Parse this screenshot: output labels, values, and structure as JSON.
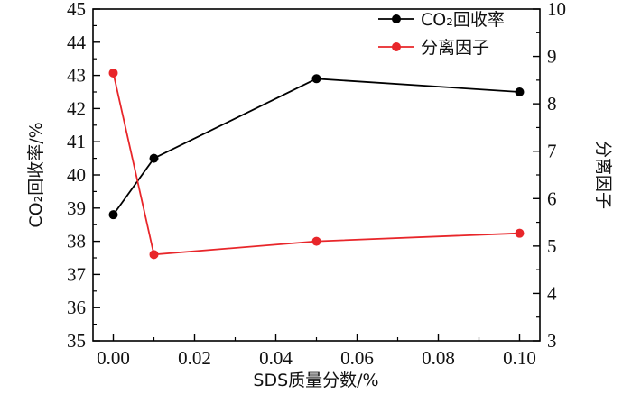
{
  "chart_data": {
    "type": "line",
    "title": "",
    "xlabel": "SDS质量分数/%",
    "ylabel_left": "CO₂回收率/%",
    "ylabel_right": "分离因子",
    "xlim": [
      -0.005,
      0.105
    ],
    "ylim_left": [
      35,
      45
    ],
    "ylim_right": [
      3,
      10
    ],
    "x_ticks": [
      "0.00",
      "0.02",
      "0.04",
      "0.06",
      "0.08",
      "0.10"
    ],
    "y_left_ticks": [
      "35",
      "36",
      "37",
      "38",
      "39",
      "40",
      "41",
      "42",
      "43",
      "44",
      "45"
    ],
    "y_right_ticks": [
      "3",
      "4",
      "5",
      "6",
      "7",
      "8",
      "9",
      "10"
    ],
    "grid": false,
    "legend_position": "top-right",
    "series": [
      {
        "name": "CO₂回收率",
        "axis": "left",
        "color": "#000000",
        "x": [
          0.0,
          0.01,
          0.05,
          0.1
        ],
        "y": [
          38.8,
          40.5,
          42.9,
          42.5
        ]
      },
      {
        "name": "分离因子",
        "axis": "right",
        "color": "#e8262a",
        "x": [
          0.0,
          0.01,
          0.05,
          0.1
        ],
        "y": [
          8.65,
          4.82,
          5.1,
          5.27
        ]
      }
    ]
  }
}
